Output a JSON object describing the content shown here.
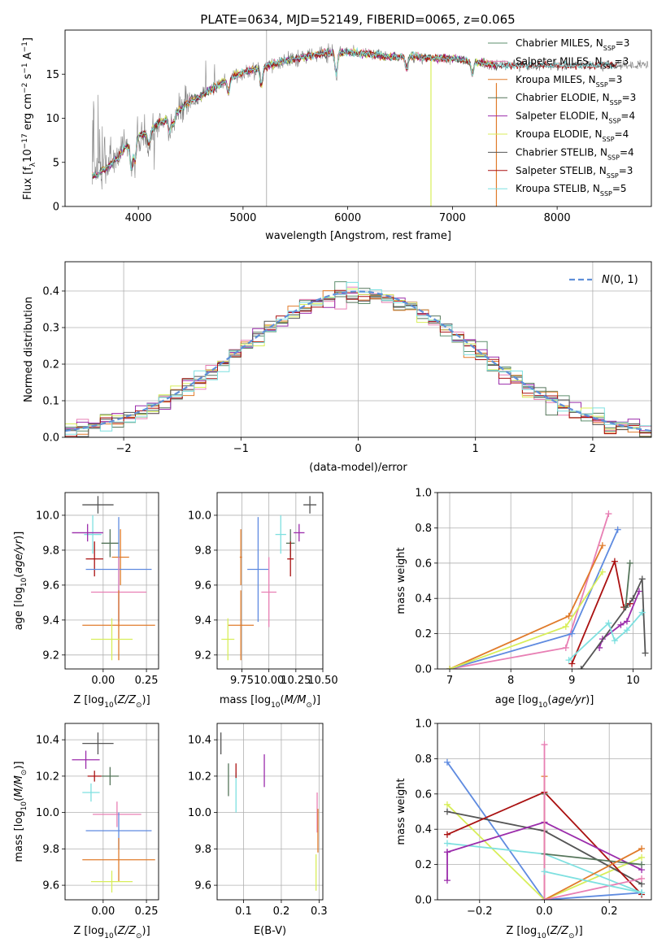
{
  "figure_title": "PLATE=0634, MJD=52149, FIBERID=0065, z=0.065",
  "colors": {
    "chabrier_miles": "#5e8f6e",
    "salpeter_miles": "#e87fb4",
    "kroupa_miles": "#e07b2b",
    "chabrier_elodie": "#55755a",
    "salpeter_elodie": "#9b2cab",
    "kroupa_elodie": "#d8ee5a",
    "chabrier_stelib": "#555555",
    "salpeter_stelib": "#aa1111",
    "kroupa_stelib": "#7ee0e0",
    "blue": "#5f8be0",
    "gaussian": "#5f8fd8",
    "data_gray": "#808080"
  },
  "chart_data": [
    {
      "id": "spectrum",
      "type": "line",
      "title": "",
      "xlabel": "wavelength [Angstrom, rest frame]",
      "ylabel": "Flux [f$_\\lambda$10$^{-17}$ erg cm$^{-2}$ s$^{-1}$ A$^{-1}$]",
      "ylabel_display": "Flux [f",
      "xlim": [
        3300,
        8900
      ],
      "ylim": [
        0,
        20
      ],
      "xticks": [
        4000,
        5000,
        6000,
        7000,
        8000
      ],
      "yticks": [
        0,
        5,
        10,
        15
      ],
      "legend_position": "upper-right",
      "legend": [
        {
          "label": "Chabrier MILES, N",
          "sub": "SSP",
          "n": "=3",
          "color": "#5e8f6e"
        },
        {
          "label": "Salpeter MILES, N",
          "sub": "SSP",
          "n": "=3",
          "color": "#e87fb4"
        },
        {
          "label": "Kroupa MILES, N",
          "sub": "SSP",
          "n": "=3",
          "color": "#e07b2b"
        },
        {
          "label": "Chabrier ELODIE, N",
          "sub": "SSP",
          "n": "=3",
          "color": "#55755a"
        },
        {
          "label": "Salpeter ELODIE, N",
          "sub": "SSP",
          "n": "=4",
          "color": "#9b2cab"
        },
        {
          "label": "Kroupa ELODIE, N",
          "sub": "SSP",
          "n": "=4",
          "color": "#d8ee5a"
        },
        {
          "label": "Chabrier STELIB, N",
          "sub": "SSP",
          "n": "=4",
          "color": "#555555"
        },
        {
          "label": "Salpeter STELIB, N",
          "sub": "SSP",
          "n": "=3",
          "color": "#aa1111"
        },
        {
          "label": "Kroupa STELIB, N",
          "sub": "SSP",
          "n": "=5",
          "color": "#7ee0e0"
        }
      ],
      "continuum": {
        "x": [
          3600,
          3700,
          3800,
          3900,
          4000,
          4100,
          4200,
          4300,
          4400,
          4500,
          4600,
          4700,
          4800,
          4900,
          5000,
          5200,
          5400,
          5600,
          5800,
          6000,
          6200,
          6400,
          6600,
          6800,
          7000,
          7200,
          7400
        ],
        "y": [
          3.5,
          4.5,
          5.5,
          7.0,
          8.0,
          8.5,
          9.5,
          10.0,
          11.0,
          12.0,
          12.5,
          13.3,
          14.0,
          14.7,
          15.2,
          15.8,
          16.5,
          17.0,
          17.4,
          17.5,
          17.3,
          17.0,
          17.0,
          16.8,
          16.8,
          16.4,
          16.0
        ]
      },
      "data_range": [
        3560,
        8870
      ],
      "model_range": [
        3560,
        7420
      ],
      "stelib_range": [
        3560,
        8850
      ]
    },
    {
      "id": "residual_hist",
      "type": "line",
      "title": "",
      "xlabel": "(data-model)/error",
      "ylabel": "Normed distribution",
      "xlim": [
        -2.5,
        2.5
      ],
      "ylim": [
        0,
        0.48
      ],
      "xticks": [
        -2,
        -1,
        0,
        1,
        2
      ],
      "yticks": [
        0.0,
        0.1,
        0.2,
        0.3,
        0.4
      ],
      "legend_position": "upper-right",
      "legend_label": "N(0, 1)",
      "bin_width": 0.1,
      "bin_start": -2.5
    },
    {
      "id": "age_vs_Z",
      "type": "scatter",
      "xlabel": "Z [log10(Z/Z⊙)]",
      "ylabel": "age  [log10(age/yr)]",
      "xlim": [
        -0.22,
        0.32
      ],
      "ylim": [
        9.12,
        10.13
      ],
      "xticks": [
        0.0,
        0.25
      ],
      "xticklabels": [
        "0.00",
        "0.25"
      ],
      "yticks": [
        9.2,
        9.4,
        9.6,
        9.8,
        10.0
      ],
      "points": [
        {
          "model": "chabrier_stelib",
          "x": -0.03,
          "y": 10.06,
          "xe": 0.09,
          "ye": 0.05
        },
        {
          "model": "kroupa_stelib",
          "x": -0.06,
          "y": 9.89,
          "xe": 0.05,
          "ye": 0.11
        },
        {
          "model": "salpeter_elodie",
          "x": -0.09,
          "y": 9.9,
          "xe": 0.09,
          "ye": 0.05
        },
        {
          "model": "chabrier_elodie",
          "x": 0.04,
          "y": 9.84,
          "xe": 0.05,
          "ye": 0.08
        },
        {
          "model": "salpeter_stelib",
          "x": -0.05,
          "y": 9.75,
          "xe": 0.05,
          "ye": 0.1
        },
        {
          "model": "kroupa_miles",
          "x": 0.1,
          "y": 9.76,
          "xe": 0.05,
          "ye": 0.16
        },
        {
          "model": "blue",
          "x": 0.09,
          "y": 9.69,
          "xe": 0.19,
          "ye": 0.3
        },
        {
          "model": "salpeter_miles",
          "x": 0.09,
          "y": 9.56,
          "xe": 0.16,
          "ye": 0.2
        },
        {
          "model": "kroupa_miles",
          "x": 0.09,
          "y": 9.37,
          "xe": 0.21,
          "ye": 0.2
        },
        {
          "model": "kroupa_elodie",
          "x": 0.05,
          "y": 9.29,
          "xe": 0.12,
          "ye": 0.12
        }
      ]
    },
    {
      "id": "age_vs_mass",
      "type": "scatter",
      "xlabel": "mass [log10(M/M⊙)]",
      "xlim": [
        9.52,
        10.5
      ],
      "ylim": [
        9.12,
        10.13
      ],
      "xticks": [
        9.75,
        10.0,
        10.25,
        10.5
      ],
      "xticklabels": [
        "9.75",
        "10.00",
        "10.25",
        "10.50"
      ],
      "yticks": [
        9.2,
        9.4,
        9.6,
        9.8,
        10.0
      ],
      "points": [
        {
          "model": "chabrier_stelib",
          "x": 10.38,
          "y": 10.06,
          "xe": 0.06,
          "ye": 0.05
        },
        {
          "model": "kroupa_stelib",
          "x": 10.11,
          "y": 9.89,
          "xe": 0.05,
          "ye": 0.11
        },
        {
          "model": "salpeter_elodie",
          "x": 10.28,
          "y": 9.9,
          "xe": 0.05,
          "ye": 0.05
        },
        {
          "model": "chabrier_elodie",
          "x": 10.2,
          "y": 9.84,
          "xe": 0.04,
          "ye": 0.08
        },
        {
          "model": "salpeter_stelib",
          "x": 10.2,
          "y": 9.75,
          "xe": 0.03,
          "ye": 0.1
        },
        {
          "model": "kroupa_miles",
          "x": 9.74,
          "y": 9.76,
          "xe": 0.01,
          "ye": 0.16
        },
        {
          "model": "blue",
          "x": 9.9,
          "y": 9.69,
          "xe": 0.1,
          "ye": 0.3
        },
        {
          "model": "salpeter_miles",
          "x": 10.0,
          "y": 9.56,
          "xe": 0.07,
          "ye": 0.2
        },
        {
          "model": "kroupa_miles",
          "x": 9.74,
          "y": 9.37,
          "xe": 0.12,
          "ye": 0.2
        },
        {
          "model": "kroupa_elodie",
          "x": 9.62,
          "y": 9.29,
          "xe": 0.06,
          "ye": 0.12
        }
      ]
    },
    {
      "id": "weight_vs_age",
      "type": "line",
      "xlabel": "age  [log10(age/yr)]",
      "ylabel": "mass weight",
      "xlim": [
        6.8,
        10.3
      ],
      "ylim": [
        0,
        1
      ],
      "xticks": [
        7,
        8,
        9,
        10
      ],
      "yticks": [
        0.0,
        0.2,
        0.4,
        0.6,
        0.8,
        1.0
      ],
      "series": [
        {
          "model": "salpeter_miles",
          "x": [
            7.0,
            8.9,
            9.6
          ],
          "y": [
            0.0,
            0.12,
            0.88
          ]
        },
        {
          "model": "blue",
          "x": [
            7.0,
            9.0,
            9.75
          ],
          "y": [
            0.0,
            0.2,
            0.79
          ]
        },
        {
          "model": "kroupa_miles",
          "x": [
            7.0,
            8.95,
            9.5
          ],
          "y": [
            0.0,
            0.3,
            0.7
          ]
        },
        {
          "model": "kroupa_elodie",
          "x": [
            7.0,
            8.9,
            9.5
          ],
          "y": [
            0.0,
            0.24,
            0.55
          ]
        },
        {
          "model": "salpeter_stelib",
          "x": [
            9.0,
            9.7,
            9.85,
            9.95
          ],
          "y": [
            0.03,
            0.61,
            0.35,
            0.37
          ]
        },
        {
          "model": "chabrier_elodie",
          "x": [
            9.95,
            9.88
          ],
          "y": [
            0.6,
            0.35
          ]
        },
        {
          "model": "salpeter_elodie",
          "x": [
            9.45,
            9.5,
            9.8,
            9.9,
            10.1
          ],
          "y": [
            0.12,
            0.17,
            0.25,
            0.27,
            0.44
          ]
        },
        {
          "model": "chabrier_stelib",
          "x": [
            9.15,
            10.0,
            10.15,
            10.2
          ],
          "y": [
            0.0,
            0.4,
            0.51,
            0.09
          ]
        },
        {
          "model": "kroupa_stelib",
          "x": [
            8.95,
            9.6,
            9.7,
            9.9,
            10.15
          ],
          "y": [
            0.05,
            0.26,
            0.16,
            0.22,
            0.32
          ]
        }
      ]
    },
    {
      "id": "mass_vs_Z",
      "type": "scatter",
      "xlabel": "Z [log10(Z/Z⊙)]",
      "ylabel": "mass [log10(M/M⊙)]",
      "xlim": [
        -0.22,
        0.32
      ],
      "ylim": [
        9.52,
        10.49
      ],
      "xticks": [
        0.0,
        0.25
      ],
      "xticklabels": [
        "0.00",
        "0.25"
      ],
      "yticks": [
        9.6,
        9.8,
        10.0,
        10.2,
        10.4
      ],
      "points": [
        {
          "model": "chabrier_stelib",
          "x": -0.03,
          "y": 10.38,
          "xe": 0.09,
          "ye": 0.06
        },
        {
          "model": "salpeter_elodie",
          "x": -0.1,
          "y": 10.29,
          "xe": 0.08,
          "ye": 0.05
        },
        {
          "model": "chabrier_elodie",
          "x": 0.04,
          "y": 10.2,
          "xe": 0.05,
          "ye": 0.05
        },
        {
          "model": "salpeter_stelib",
          "x": -0.05,
          "y": 10.2,
          "xe": 0.04,
          "ye": 0.03
        },
        {
          "model": "kroupa_stelib",
          "x": -0.07,
          "y": 10.11,
          "xe": 0.05,
          "ye": 0.05
        },
        {
          "model": "salpeter_miles",
          "x": 0.08,
          "y": 9.99,
          "xe": 0.14,
          "ye": 0.07
        },
        {
          "model": "blue",
          "x": 0.09,
          "y": 9.9,
          "xe": 0.19,
          "ye": 0.1
        },
        {
          "model": "kroupa_miles",
          "x": 0.09,
          "y": 9.74,
          "xe": 0.21,
          "ye": 0.12
        },
        {
          "model": "kroupa_elodie",
          "x": 0.05,
          "y": 9.62,
          "xe": 0.12,
          "ye": 0.06
        }
      ]
    },
    {
      "id": "mass_vs_ebv",
      "type": "scatter",
      "xlabel": "E(B-V)",
      "xlim": [
        0.03,
        0.31
      ],
      "ylim": [
        9.52,
        10.49
      ],
      "xticks": [
        0.1,
        0.2,
        0.3
      ],
      "yticks": [
        9.6,
        9.8,
        10.0,
        10.2,
        10.4
      ],
      "points": [
        {
          "model": "chabrier_stelib",
          "x": 0.04,
          "y": 10.38,
          "xe": 0.0,
          "ye": 0.06
        },
        {
          "model": "chabrier_elodie",
          "x": 0.06,
          "y": 10.18,
          "xe": 0.0,
          "ye": 0.09
        },
        {
          "model": "kroupa_stelib",
          "x": 0.08,
          "y": 10.11,
          "xe": 0.0,
          "ye": 0.11
        },
        {
          "model": "salpeter_stelib",
          "x": 0.08,
          "y": 10.23,
          "xe": 0.0,
          "ye": 0.04
        },
        {
          "model": "salpeter_elodie",
          "x": 0.155,
          "y": 10.23,
          "xe": 0.0,
          "ye": 0.09
        },
        {
          "model": "salpeter_miles",
          "x": 0.295,
          "y": 10.0,
          "xe": 0.0,
          "ye": 0.11
        },
        {
          "model": "kroupa_miles",
          "x": 0.297,
          "y": 9.9,
          "xe": 0.0,
          "ye": 0.12
        },
        {
          "model": "kroupa_elodie",
          "x": 0.292,
          "y": 9.67,
          "xe": 0.0,
          "ye": 0.1
        }
      ]
    },
    {
      "id": "weight_vs_Z",
      "type": "line",
      "xlabel": "Z [log10(Z/Z⊙)]",
      "ylabel": "mass weight",
      "xlim": [
        -0.33,
        0.33
      ],
      "ylim": [
        0,
        1
      ],
      "xticks": [
        -0.2,
        0.0,
        0.2
      ],
      "xticklabels": [
        "−0.2",
        "0.0",
        "0.2"
      ],
      "yticks": [
        0.0,
        0.2,
        0.4,
        0.6,
        0.8,
        1.0
      ],
      "series": [
        {
          "model": "blue",
          "x": [
            -0.3,
            0.0,
            0.3
          ],
          "y": [
            0.78,
            0.0,
            0.04
          ]
        },
        {
          "model": "kroupa_elodie",
          "x": [
            -0.3,
            0.0,
            0.3
          ],
          "y": [
            0.54,
            0.0,
            0.24
          ]
        },
        {
          "model": "chabrier_stelib",
          "x": [
            -0.3,
            0.0,
            0.3
          ],
          "y": [
            0.5,
            0.39,
            0.09
          ]
        },
        {
          "model": "salpeter_stelib",
          "x": [
            -0.3,
            0.0,
            0.3
          ],
          "y": [
            0.37,
            0.61,
            0.03
          ]
        },
        {
          "model": "kroupa_stelib",
          "x": [
            -0.3,
            0.0,
            0.3
          ],
          "y": [
            0.32,
            0.26,
            0.04
          ]
        },
        {
          "model": "salpeter_elodie",
          "x": [
            -0.3,
            0.0,
            0.3
          ],
          "y": [
            0.27,
            0.44,
            0.17
          ]
        },
        {
          "model": "chabrier_elodie",
          "x": [
            0.0,
            0.0,
            0.3
          ],
          "y": [
            0.6,
            0.26,
            0.2
          ]
        },
        {
          "model": "kroupa_miles",
          "x": [
            0.0,
            0.0,
            0.3
          ],
          "y": [
            0.7,
            0.0,
            0.29
          ]
        },
        {
          "model": "salpeter_miles",
          "x": [
            0.0,
            0.0,
            0.3
          ],
          "y": [
            0.88,
            0.0,
            0.12
          ]
        },
        {
          "model": "kroupa_stelib",
          "x": [
            0.0,
            0.3
          ],
          "y": [
            0.16,
            0.04
          ]
        },
        {
          "model": "salpeter_elodie",
          "x": [
            -0.3,
            -0.3
          ],
          "y": [
            0.27,
            0.11
          ]
        }
      ]
    }
  ]
}
